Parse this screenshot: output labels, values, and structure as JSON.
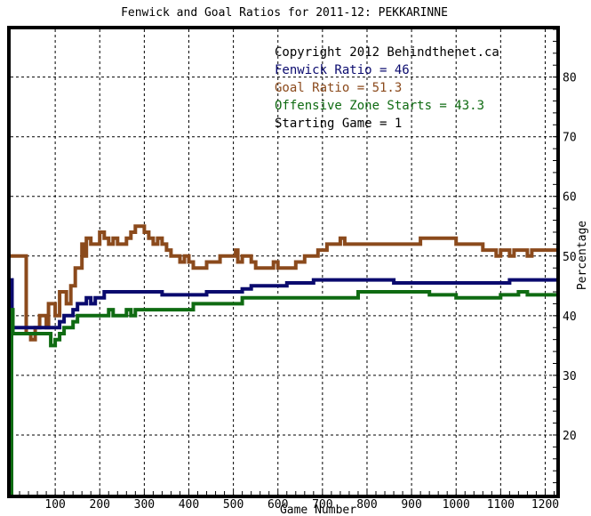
{
  "chart_data": {
    "type": "line",
    "title": "Fenwick and Goal Ratios for 2011-12: PEKKARINNE",
    "xlabel": "Game Number",
    "ylabel": "Percentage",
    "xlim": [
      0,
      1225
    ],
    "ylim": [
      10,
      88
    ],
    "grid": true,
    "legend_position": "top-right",
    "x_ticks": [
      100,
      200,
      300,
      400,
      500,
      600,
      700,
      800,
      900,
      1000,
      1100,
      1200
    ],
    "y_ticks": [
      20,
      30,
      40,
      50,
      60,
      70,
      80
    ],
    "annotations": [
      {
        "text": "Copyright 2012 Behindthenet.ca",
        "color": "#000000"
      },
      {
        "text": "Fenwick Ratio = 46",
        "color": "#0a0a6e"
      },
      {
        "text": "Goal Ratio = 51.3",
        "color": "#8b4a1c"
      },
      {
        "text": "Offensive Zone Starts = 43.3",
        "color": "#0f6b12"
      },
      {
        "text": "Starting Game = 1",
        "color": "#000000"
      }
    ],
    "series": [
      {
        "key": "goal",
        "color": "#8b4a1c",
        "points": [
          [
            0,
            50
          ],
          [
            35,
            50
          ],
          [
            35,
            37
          ],
          [
            45,
            36
          ],
          [
            55,
            38
          ],
          [
            65,
            40
          ],
          [
            80,
            38
          ],
          [
            85,
            42
          ],
          [
            95,
            42
          ],
          [
            100,
            40
          ],
          [
            110,
            44
          ],
          [
            125,
            42
          ],
          [
            135,
            45
          ],
          [
            145,
            48
          ],
          [
            155,
            48
          ],
          [
            160,
            52
          ],
          [
            165,
            50
          ],
          [
            170,
            53
          ],
          [
            180,
            52
          ],
          [
            190,
            52
          ],
          [
            200,
            54
          ],
          [
            210,
            53
          ],
          [
            220,
            52
          ],
          [
            230,
            53
          ],
          [
            240,
            52
          ],
          [
            250,
            52
          ],
          [
            260,
            53
          ],
          [
            270,
            54
          ],
          [
            280,
            55
          ],
          [
            290,
            55
          ],
          [
            300,
            54
          ],
          [
            310,
            53
          ],
          [
            320,
            52
          ],
          [
            330,
            53
          ],
          [
            340,
            52
          ],
          [
            350,
            51
          ],
          [
            360,
            50
          ],
          [
            370,
            50
          ],
          [
            380,
            49
          ],
          [
            390,
            50
          ],
          [
            400,
            49
          ],
          [
            410,
            48
          ],
          [
            420,
            48
          ],
          [
            430,
            48
          ],
          [
            440,
            49
          ],
          [
            450,
            49
          ],
          [
            460,
            49
          ],
          [
            470,
            50
          ],
          [
            480,
            50
          ],
          [
            490,
            50
          ],
          [
            500,
            50
          ],
          [
            505,
            51
          ],
          [
            510,
            49
          ],
          [
            520,
            50
          ],
          [
            530,
            50
          ],
          [
            540,
            49
          ],
          [
            550,
            48
          ],
          [
            560,
            48
          ],
          [
            570,
            48
          ],
          [
            580,
            48
          ],
          [
            590,
            49
          ],
          [
            600,
            48
          ],
          [
            610,
            48
          ],
          [
            620,
            48
          ],
          [
            630,
            48
          ],
          [
            640,
            49
          ],
          [
            650,
            49
          ],
          [
            660,
            50
          ],
          [
            670,
            50
          ],
          [
            680,
            50
          ],
          [
            690,
            51
          ],
          [
            700,
            51
          ],
          [
            710,
            52
          ],
          [
            720,
            52
          ],
          [
            730,
            52
          ],
          [
            740,
            53
          ],
          [
            750,
            52
          ],
          [
            760,
            52
          ],
          [
            780,
            52
          ],
          [
            800,
            52
          ],
          [
            820,
            52
          ],
          [
            840,
            52
          ],
          [
            860,
            52
          ],
          [
            880,
            52
          ],
          [
            900,
            52
          ],
          [
            920,
            53
          ],
          [
            940,
            53
          ],
          [
            960,
            53
          ],
          [
            980,
            53
          ],
          [
            1000,
            52
          ],
          [
            1020,
            52
          ],
          [
            1040,
            52
          ],
          [
            1060,
            51
          ],
          [
            1080,
            51
          ],
          [
            1090,
            50
          ],
          [
            1100,
            51
          ],
          [
            1110,
            51
          ],
          [
            1120,
            50
          ],
          [
            1130,
            51
          ],
          [
            1150,
            51
          ],
          [
            1160,
            50
          ],
          [
            1170,
            51
          ],
          [
            1190,
            51
          ],
          [
            1200,
            51
          ],
          [
            1210,
            51
          ],
          [
            1225,
            51
          ]
        ]
      },
      {
        "key": "fenwick",
        "color": "#0a0a6e",
        "points": [
          [
            0,
            46
          ],
          [
            3,
            38
          ],
          [
            10,
            38
          ],
          [
            20,
            38
          ],
          [
            40,
            38
          ],
          [
            60,
            38
          ],
          [
            80,
            38
          ],
          [
            100,
            38
          ],
          [
            110,
            39
          ],
          [
            120,
            40
          ],
          [
            130,
            40
          ],
          [
            140,
            41
          ],
          [
            150,
            42
          ],
          [
            160,
            42
          ],
          [
            170,
            43
          ],
          [
            180,
            42
          ],
          [
            190,
            43
          ],
          [
            200,
            43
          ],
          [
            210,
            44
          ],
          [
            220,
            44
          ],
          [
            230,
            44
          ],
          [
            240,
            44
          ],
          [
            250,
            44
          ],
          [
            260,
            44
          ],
          [
            270,
            44
          ],
          [
            280,
            44
          ],
          [
            290,
            44
          ],
          [
            300,
            44
          ],
          [
            320,
            44
          ],
          [
            340,
            43.5
          ],
          [
            360,
            43.5
          ],
          [
            380,
            43.5
          ],
          [
            400,
            43.5
          ],
          [
            420,
            43.5
          ],
          [
            440,
            44
          ],
          [
            460,
            44
          ],
          [
            480,
            44
          ],
          [
            500,
            44
          ],
          [
            520,
            44.5
          ],
          [
            540,
            45
          ],
          [
            560,
            45
          ],
          [
            580,
            45
          ],
          [
            600,
            45
          ],
          [
            620,
            45.5
          ],
          [
            640,
            45.5
          ],
          [
            660,
            45.5
          ],
          [
            680,
            46
          ],
          [
            700,
            46
          ],
          [
            720,
            46
          ],
          [
            740,
            46
          ],
          [
            760,
            46
          ],
          [
            780,
            46
          ],
          [
            800,
            46
          ],
          [
            820,
            46
          ],
          [
            840,
            46
          ],
          [
            860,
            45.5
          ],
          [
            880,
            45.5
          ],
          [
            900,
            45.5
          ],
          [
            920,
            45.5
          ],
          [
            940,
            45.5
          ],
          [
            960,
            45.5
          ],
          [
            980,
            45.5
          ],
          [
            1000,
            45.5
          ],
          [
            1020,
            45.5
          ],
          [
            1040,
            45.5
          ],
          [
            1060,
            45.5
          ],
          [
            1080,
            45.5
          ],
          [
            1100,
            45.5
          ],
          [
            1120,
            46
          ],
          [
            1140,
            46
          ],
          [
            1160,
            46
          ],
          [
            1180,
            46
          ],
          [
            1200,
            46
          ],
          [
            1225,
            46
          ]
        ]
      },
      {
        "key": "ozs",
        "color": "#0f6b12",
        "points": [
          [
            0,
            10
          ],
          [
            2,
            41
          ],
          [
            5,
            37
          ],
          [
            10,
            37
          ],
          [
            20,
            37
          ],
          [
            30,
            37
          ],
          [
            40,
            37
          ],
          [
            50,
            37
          ],
          [
            60,
            37
          ],
          [
            70,
            37
          ],
          [
            80,
            37
          ],
          [
            90,
            35
          ],
          [
            100,
            36
          ],
          [
            110,
            37
          ],
          [
            120,
            38
          ],
          [
            130,
            38
          ],
          [
            140,
            39
          ],
          [
            150,
            40
          ],
          [
            160,
            40
          ],
          [
            170,
            40
          ],
          [
            180,
            40
          ],
          [
            190,
            40
          ],
          [
            200,
            40
          ],
          [
            210,
            40
          ],
          [
            220,
            41
          ],
          [
            230,
            40
          ],
          [
            240,
            40
          ],
          [
            250,
            40
          ],
          [
            260,
            41
          ],
          [
            270,
            40
          ],
          [
            280,
            41
          ],
          [
            290,
            41
          ],
          [
            300,
            41
          ],
          [
            320,
            41
          ],
          [
            340,
            41
          ],
          [
            360,
            41
          ],
          [
            380,
            41
          ],
          [
            400,
            41
          ],
          [
            410,
            42
          ],
          [
            420,
            42
          ],
          [
            430,
            42
          ],
          [
            440,
            42
          ],
          [
            460,
            42
          ],
          [
            480,
            42
          ],
          [
            500,
            42
          ],
          [
            520,
            43
          ],
          [
            540,
            43
          ],
          [
            560,
            43
          ],
          [
            580,
            43
          ],
          [
            600,
            43
          ],
          [
            620,
            43
          ],
          [
            640,
            43
          ],
          [
            660,
            43
          ],
          [
            680,
            43
          ],
          [
            700,
            43
          ],
          [
            720,
            43
          ],
          [
            740,
            43
          ],
          [
            760,
            43
          ],
          [
            780,
            44
          ],
          [
            800,
            44
          ],
          [
            820,
            44
          ],
          [
            840,
            44
          ],
          [
            860,
            44
          ],
          [
            880,
            44
          ],
          [
            900,
            44
          ],
          [
            920,
            44
          ],
          [
            940,
            43.5
          ],
          [
            960,
            43.5
          ],
          [
            980,
            43.5
          ],
          [
            1000,
            43
          ],
          [
            1020,
            43
          ],
          [
            1040,
            43
          ],
          [
            1060,
            43
          ],
          [
            1080,
            43
          ],
          [
            1100,
            43.5
          ],
          [
            1120,
            43.5
          ],
          [
            1140,
            44
          ],
          [
            1160,
            43.5
          ],
          [
            1180,
            43.5
          ],
          [
            1200,
            43.5
          ],
          [
            1225,
            43.5
          ]
        ]
      }
    ]
  }
}
